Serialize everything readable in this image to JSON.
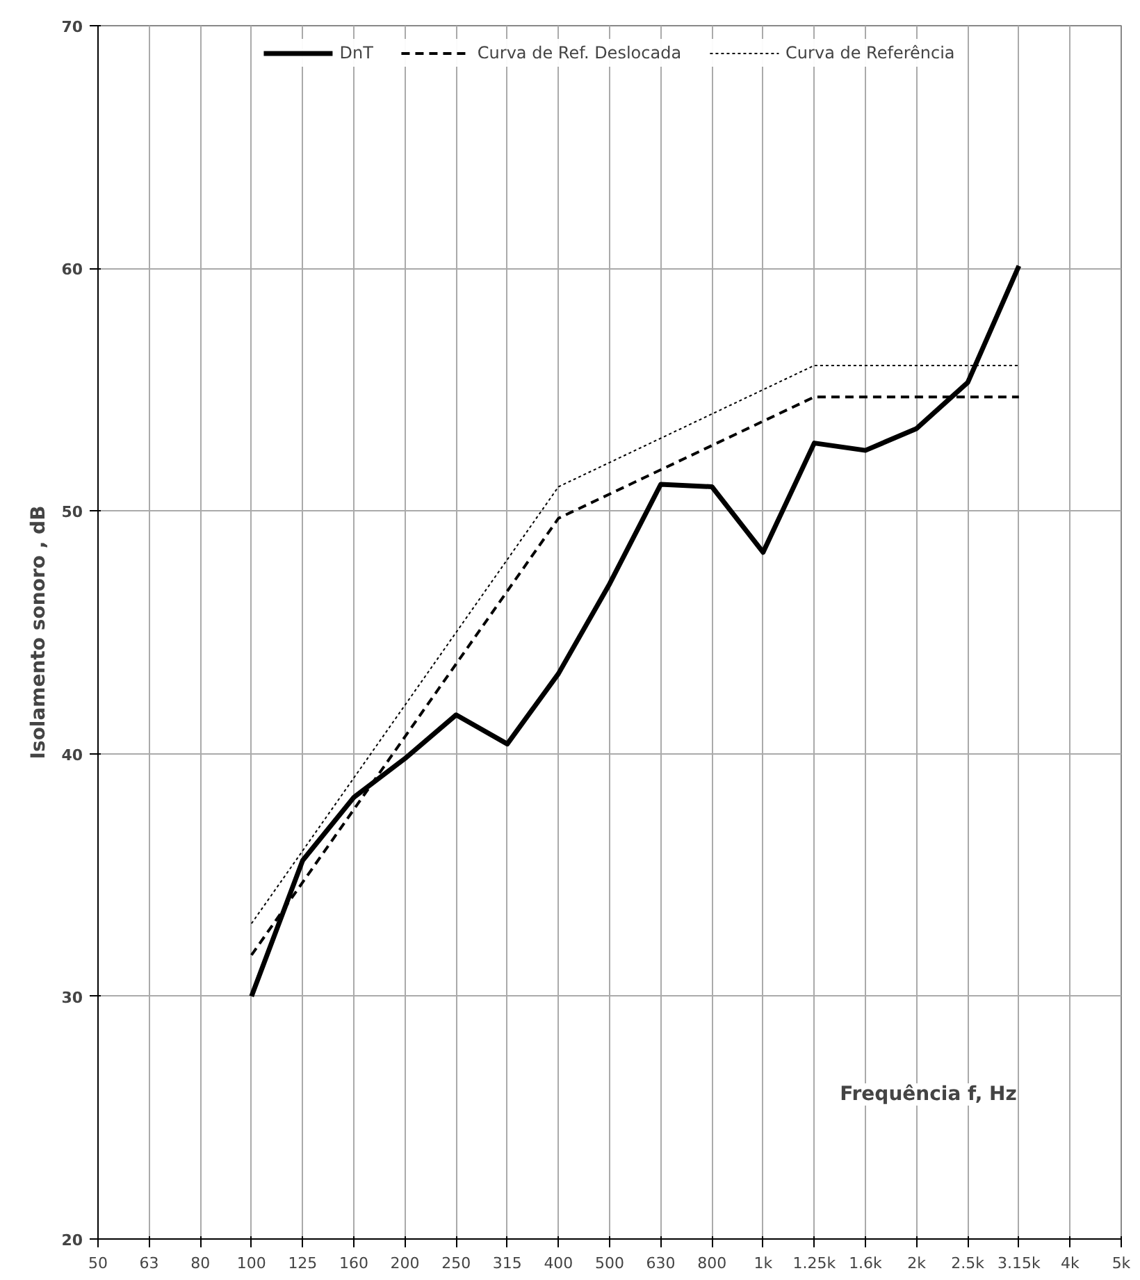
{
  "chart_data": {
    "type": "line",
    "xlabel": "Frequência f, Hz",
    "ylabel": "Isolamento sonoro , dB",
    "categories": [
      "50",
      "63",
      "80",
      "100",
      "125",
      "160",
      "200",
      "250",
      "315",
      "400",
      "500",
      "630",
      "800",
      "1k",
      "1.25k",
      "1.6k",
      "2k",
      "2.5k",
      "3.15k",
      "4k",
      "5k"
    ],
    "ylim": [
      20,
      70
    ],
    "yticks": [
      20,
      30,
      40,
      50,
      60,
      70
    ],
    "grid": true,
    "legend": "top",
    "series": [
      {
        "name": "DnT",
        "color": "#000000",
        "line_style": "solid",
        "values": [
          null,
          null,
          null,
          30.0,
          35.6,
          38.2,
          39.8,
          41.6,
          40.4,
          43.3,
          47.0,
          51.1,
          51.0,
          48.3,
          52.8,
          52.5,
          53.4,
          55.3,
          60.1,
          null,
          null
        ]
      },
      {
        "name": "Curva de Ref. Deslocada",
        "color": "#000000",
        "line_style": "dashed",
        "values": [
          null,
          null,
          null,
          31.7,
          34.7,
          37.7,
          40.7,
          43.7,
          46.7,
          49.7,
          50.7,
          51.7,
          52.7,
          53.7,
          54.7,
          54.7,
          54.7,
          54.7,
          54.7,
          null,
          null
        ]
      },
      {
        "name": "Curva de Referência",
        "color": "#000000",
        "line_style": "dotted",
        "values": [
          null,
          null,
          null,
          33,
          36,
          39,
          42,
          45,
          48,
          51,
          52,
          53,
          54,
          55,
          56,
          56,
          56,
          56,
          56,
          null,
          null
        ]
      }
    ]
  }
}
